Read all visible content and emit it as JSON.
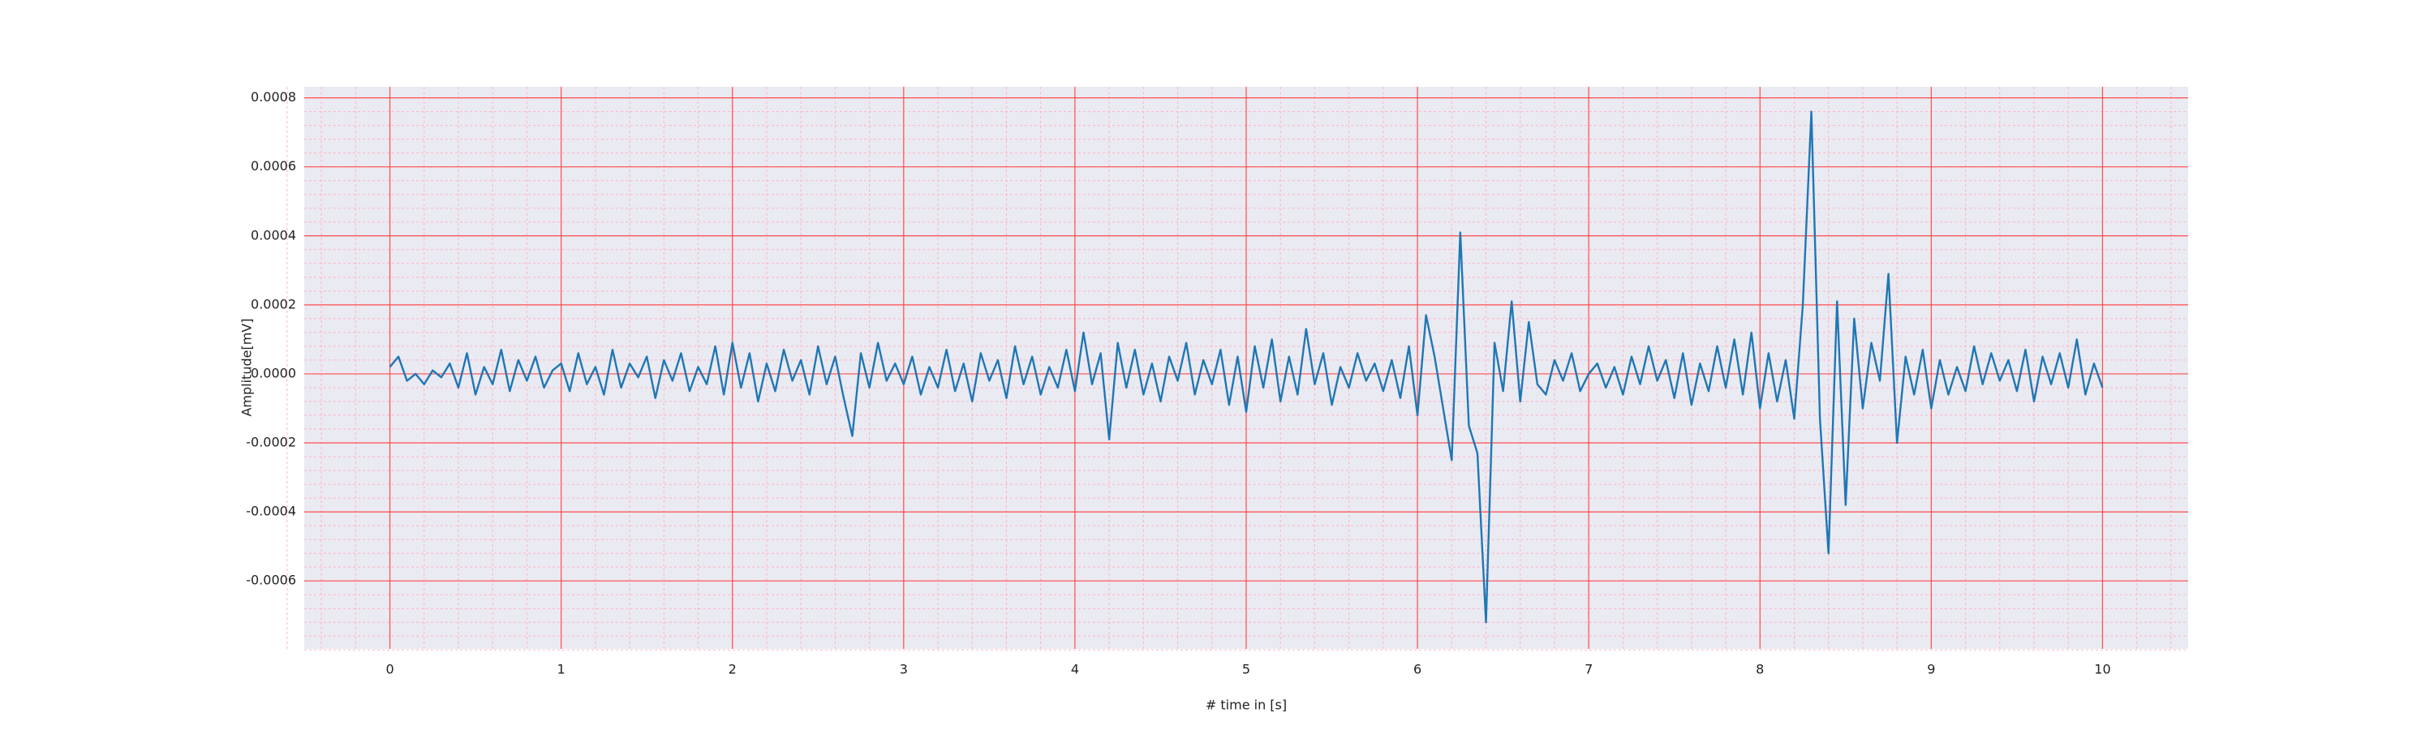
{
  "chart_data": {
    "type": "line",
    "xlabel": "# time in [s]",
    "ylabel": "Amplitude[mV]",
    "xlim": [
      -0.5,
      10.5
    ],
    "ylim": [
      -0.000797,
      0.000832
    ],
    "xticks": [
      0,
      1,
      2,
      3,
      4,
      5,
      6,
      7,
      8,
      9,
      10
    ],
    "yticks": [
      {
        "value": -0.0006,
        "label": "-0.0006"
      },
      {
        "value": -0.0004,
        "label": "-0.0004"
      },
      {
        "value": -0.0002,
        "label": "-0.0002"
      },
      {
        "value": 0,
        "label": "0.0000"
      },
      {
        "value": 0.0002,
        "label": "0.0002"
      },
      {
        "value": 0.0004,
        "label": "0.0004"
      },
      {
        "value": 0.0006,
        "label": "0.0006"
      },
      {
        "value": 0.0008,
        "label": "0.0008"
      }
    ],
    "grid": true,
    "minor_grid": true,
    "background": "#eaeaf2",
    "grid_color": "#ff4d4d",
    "minor_grid_color": "#ffb3c1",
    "x": [
      0,
      0.05,
      0.1,
      0.15,
      0.2,
      0.25,
      0.3,
      0.35,
      0.4,
      0.45,
      0.5,
      0.55,
      0.6,
      0.65,
      0.7,
      0.75,
      0.8,
      0.85,
      0.9,
      0.95,
      1,
      1.05,
      1.1,
      1.15,
      1.2,
      1.25,
      1.3,
      1.35,
      1.4,
      1.45,
      1.5,
      1.55,
      1.6,
      1.65,
      1.7,
      1.75,
      1.8,
      1.85,
      1.9,
      1.95,
      2,
      2.05,
      2.1,
      2.15,
      2.2,
      2.25,
      2.3,
      2.35,
      2.4,
      2.45,
      2.5,
      2.55,
      2.6,
      2.65,
      2.7,
      2.75,
      2.8,
      2.85,
      2.9,
      2.95,
      3,
      3.05,
      3.1,
      3.15,
      3.2,
      3.25,
      3.3,
      3.35,
      3.4,
      3.45,
      3.5,
      3.55,
      3.6,
      3.65,
      3.7,
      3.75,
      3.8,
      3.85,
      3.9,
      3.95,
      4,
      4.05,
      4.1,
      4.15,
      4.2,
      4.25,
      4.3,
      4.35,
      4.4,
      4.45,
      4.5,
      4.55,
      4.6,
      4.65,
      4.7,
      4.75,
      4.8,
      4.85,
      4.9,
      4.95,
      5,
      5.05,
      5.1,
      5.15,
      5.2,
      5.25,
      5.3,
      5.35,
      5.4,
      5.45,
      5.5,
      5.55,
      5.6,
      5.65,
      5.7,
      5.75,
      5.8,
      5.85,
      5.9,
      5.95,
      6,
      6.05,
      6.1,
      6.15,
      6.2,
      6.25,
      6.3,
      6.35,
      6.4,
      6.45,
      6.5,
      6.55,
      6.6,
      6.65,
      6.7,
      6.75,
      6.8,
      6.85,
      6.9,
      6.95,
      7,
      7.05,
      7.1,
      7.15,
      7.2,
      7.25,
      7.3,
      7.35,
      7.4,
      7.45,
      7.5,
      7.55,
      7.6,
      7.65,
      7.7,
      7.75,
      7.8,
      7.85,
      7.9,
      7.95,
      8,
      8.05,
      8.1,
      8.15,
      8.2,
      8.25,
      8.3,
      8.35,
      8.4,
      8.45,
      8.5,
      8.55,
      8.6,
      8.65,
      8.7,
      8.75,
      8.8,
      8.85,
      8.9,
      8.95,
      9,
      9.05,
      9.1,
      9.15,
      9.2,
      9.25,
      9.3,
      9.35,
      9.4,
      9.45,
      9.5,
      9.55,
      9.6,
      9.65,
      9.7,
      9.75,
      9.8,
      9.85,
      9.9,
      9.95,
      10
    ],
    "series": [
      {
        "color": "#1f77b4",
        "values": [
          2e-05,
          5e-05,
          -2e-05,
          0,
          -3e-05,
          1e-05,
          -1e-05,
          3e-05,
          -4e-05,
          6e-05,
          -6e-05,
          2e-05,
          -3e-05,
          7e-05,
          -5e-05,
          4e-05,
          -2e-05,
          5e-05,
          -4e-05,
          1e-05,
          3e-05,
          -5e-05,
          6e-05,
          -3e-05,
          2e-05,
          -6e-05,
          7e-05,
          -4e-05,
          3e-05,
          -1e-05,
          5e-05,
          -7e-05,
          4e-05,
          -2e-05,
          6e-05,
          -5e-05,
          2e-05,
          -3e-05,
          8e-05,
          -6e-05,
          9e-05,
          -4e-05,
          6e-05,
          -8e-05,
          3e-05,
          -5e-05,
          7e-05,
          -2e-05,
          4e-05,
          -6e-05,
          8e-05,
          -3e-05,
          5e-05,
          -7e-05,
          -0.00018,
          6e-05,
          -4e-05,
          9e-05,
          -2e-05,
          3e-05,
          -3e-05,
          5e-05,
          -6e-05,
          2e-05,
          -4e-05,
          7e-05,
          -5e-05,
          3e-05,
          -8e-05,
          6e-05,
          -2e-05,
          4e-05,
          -7e-05,
          8e-05,
          -3e-05,
          5e-05,
          -6e-05,
          2e-05,
          -4e-05,
          7e-05,
          -5e-05,
          0.00012,
          -3e-05,
          6e-05,
          -0.00019,
          9e-05,
          -4e-05,
          7e-05,
          -6e-05,
          3e-05,
          -8e-05,
          5e-05,
          -2e-05,
          9e-05,
          -6e-05,
          4e-05,
          -3e-05,
          7e-05,
          -9e-05,
          5e-05,
          -0.00011,
          8e-05,
          -4e-05,
          0.0001,
          -8e-05,
          5e-05,
          -6e-05,
          0.00013,
          -3e-05,
          6e-05,
          -9e-05,
          2e-05,
          -4e-05,
          6e-05,
          -2e-05,
          3e-05,
          -5e-05,
          4e-05,
          -7e-05,
          8e-05,
          -0.00012,
          0.00017,
          5e-05,
          -0.0001,
          -0.00025,
          0.00041,
          -0.00015,
          -0.00023,
          -0.00072,
          9e-05,
          -5e-05,
          0.00021,
          -8e-05,
          0.00015,
          -3e-05,
          -6e-05,
          4e-05,
          -2e-05,
          6e-05,
          -5e-05,
          0,
          3e-05,
          -4e-05,
          2e-05,
          -6e-05,
          5e-05,
          -3e-05,
          8e-05,
          -2e-05,
          4e-05,
          -7e-05,
          6e-05,
          -9e-05,
          3e-05,
          -5e-05,
          8e-05,
          -4e-05,
          0.0001,
          -6e-05,
          0.00012,
          -0.0001,
          6e-05,
          -8e-05,
          4e-05,
          -0.00013,
          0.0002,
          0.00076,
          -0.00013,
          -0.00052,
          0.00021,
          -0.00038,
          0.00016,
          -0.0001,
          9e-05,
          -2e-05,
          0.00029,
          -0.0002,
          5e-05,
          -6e-05,
          7e-05,
          -0.0001,
          4e-05,
          -6e-05,
          2e-05,
          -5e-05,
          8e-05,
          -3e-05,
          6e-05,
          -2e-05,
          4e-05,
          -5e-05,
          7e-05,
          -8e-05,
          5e-05,
          -3e-05,
          6e-05,
          -4e-05,
          0.0001,
          -6e-05,
          3e-05,
          -4e-05
        ]
      }
    ]
  }
}
